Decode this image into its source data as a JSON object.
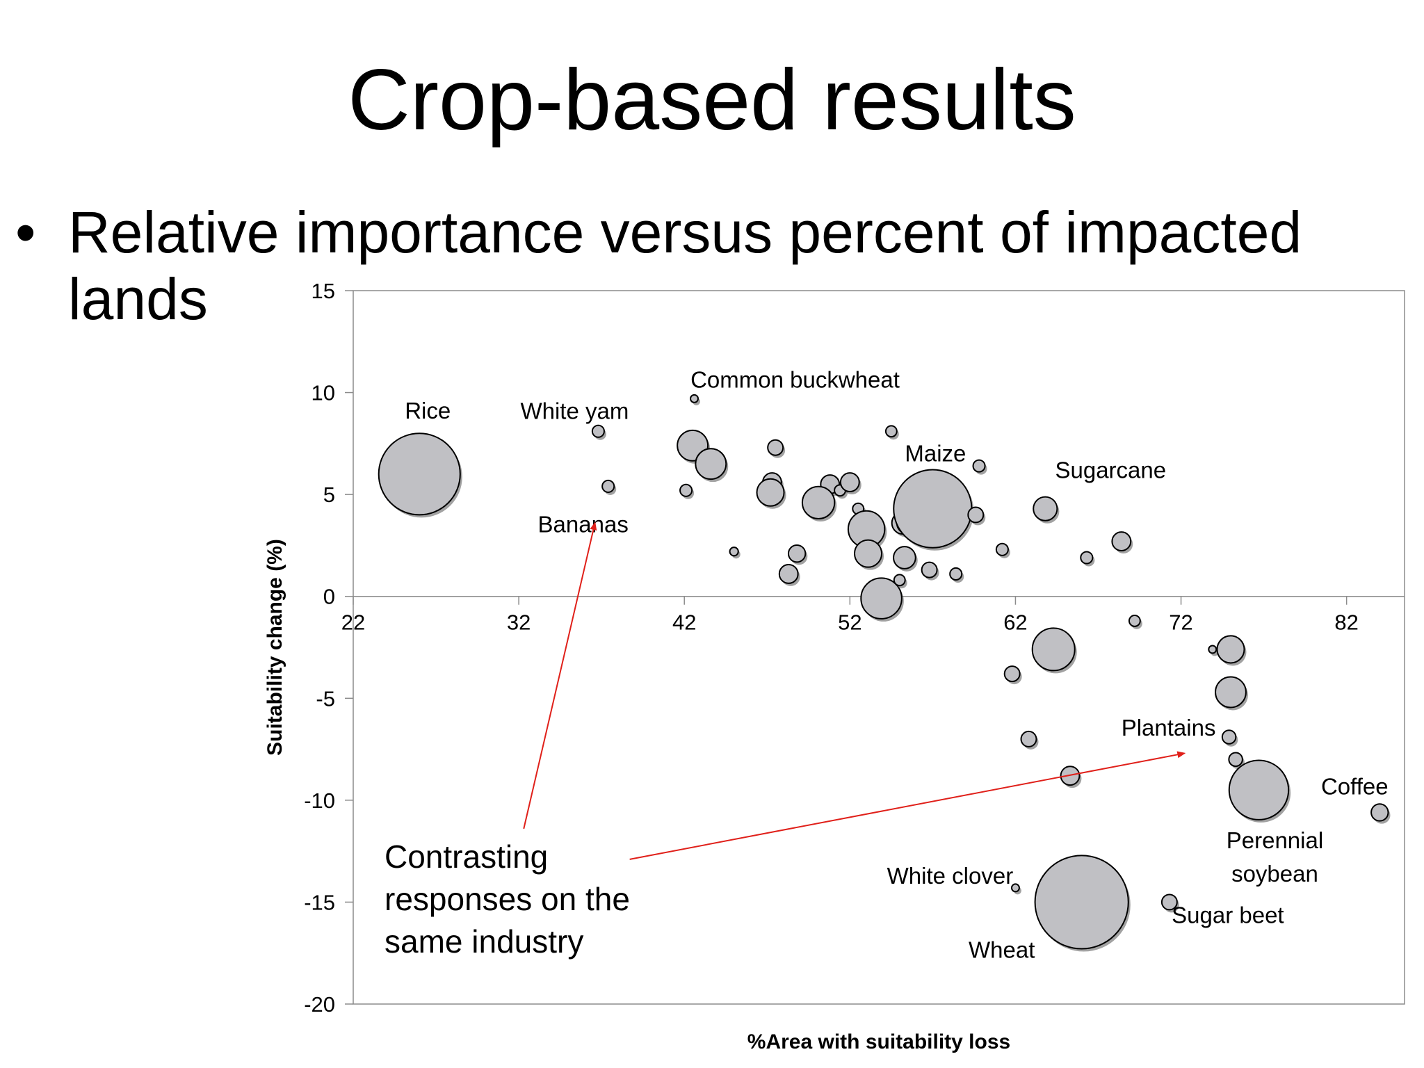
{
  "slide": {
    "title": "Crop-based results",
    "bullet": "Relative importance versus percent of impacted lands"
  },
  "chart_data": {
    "type": "scatter",
    "title": "",
    "xlabel": "%Area with suitability loss",
    "ylabel": "Suitability change (%)",
    "xlim": [
      22,
      85.5
    ],
    "ylim": [
      -20,
      15
    ],
    "xticks": [
      22,
      32,
      42,
      52,
      62,
      72,
      82
    ],
    "yticks": [
      15,
      10,
      5,
      0,
      -5,
      -10,
      -15,
      -20
    ],
    "grid": false,
    "legend": "none",
    "colors": {
      "bubble_fill": "#c0c0c4",
      "bubble_stroke": "#000000",
      "arrow": "#e0201a"
    },
    "points": [
      {
        "x": 26.0,
        "y": 6.0,
        "size": 9.6,
        "label": "Rice"
      },
      {
        "x": 36.8,
        "y": 8.1,
        "size": 1.4,
        "label": "White yam"
      },
      {
        "x": 37.4,
        "y": 5.4,
        "size": 1.4,
        "label": "Bananas"
      },
      {
        "x": 42.6,
        "y": 9.7,
        "size": 0.9,
        "label": "Common buckwheat"
      },
      {
        "x": 42.5,
        "y": 7.4,
        "size": 3.6
      },
      {
        "x": 43.6,
        "y": 6.5,
        "size": 3.6
      },
      {
        "x": 42.1,
        "y": 5.2,
        "size": 1.4
      },
      {
        "x": 45.0,
        "y": 2.2,
        "size": 1.0
      },
      {
        "x": 47.5,
        "y": 7.3,
        "size": 1.8
      },
      {
        "x": 47.3,
        "y": 5.6,
        "size": 2.2
      },
      {
        "x": 47.2,
        "y": 5.1,
        "size": 3.2
      },
      {
        "x": 48.8,
        "y": 2.1,
        "size": 2.0
      },
      {
        "x": 48.3,
        "y": 1.1,
        "size": 2.2
      },
      {
        "x": 50.8,
        "y": 5.5,
        "size": 2.2
      },
      {
        "x": 51.4,
        "y": 5.2,
        "size": 1.3
      },
      {
        "x": 52.0,
        "y": 5.6,
        "size": 2.2
      },
      {
        "x": 50.1,
        "y": 4.6,
        "size": 3.8
      },
      {
        "x": 52.5,
        "y": 4.3,
        "size": 1.3
      },
      {
        "x": 53.0,
        "y": 3.3,
        "size": 4.3
      },
      {
        "x": 53.1,
        "y": 2.1,
        "size": 3.2
      },
      {
        "x": 53.9,
        "y": -0.1,
        "size": 4.8
      },
      {
        "x": 55.0,
        "y": 0.8,
        "size": 1.3
      },
      {
        "x": 55.3,
        "y": 1.9,
        "size": 2.6
      },
      {
        "x": 55.2,
        "y": 3.6,
        "size": 2.6
      },
      {
        "x": 55.5,
        "y": 3.6,
        "size": 2.6
      },
      {
        "x": 56.8,
        "y": 1.3,
        "size": 1.8
      },
      {
        "x": 54.5,
        "y": 8.1,
        "size": 1.3
      },
      {
        "x": 57.0,
        "y": 4.3,
        "size": 9.2,
        "label": "Maize"
      },
      {
        "x": 58.4,
        "y": 1.1,
        "size": 1.4
      },
      {
        "x": 59.6,
        "y": 4.0,
        "size": 1.8
      },
      {
        "x": 59.8,
        "y": 6.4,
        "size": 1.4
      },
      {
        "x": 61.2,
        "y": 2.3,
        "size": 1.4
      },
      {
        "x": 63.8,
        "y": 4.3,
        "size": 2.8,
        "label": "Sugarcane"
      },
      {
        "x": 66.3,
        "y": 1.9,
        "size": 1.4
      },
      {
        "x": 68.4,
        "y": 2.7,
        "size": 2.2
      },
      {
        "x": 69.2,
        "y": -1.2,
        "size": 1.3
      },
      {
        "x": 64.3,
        "y": -2.6,
        "size": 5.0
      },
      {
        "x": 61.8,
        "y": -3.8,
        "size": 1.8
      },
      {
        "x": 62.8,
        "y": -7.0,
        "size": 1.8
      },
      {
        "x": 65.3,
        "y": -8.8,
        "size": 2.2
      },
      {
        "x": 73.9,
        "y": -2.6,
        "size": 0.9
      },
      {
        "x": 75.0,
        "y": -2.6,
        "size": 3.2
      },
      {
        "x": 75.0,
        "y": -4.7,
        "size": 3.6
      },
      {
        "x": 74.9,
        "y": -6.9,
        "size": 1.6,
        "label": "Plantains"
      },
      {
        "x": 75.3,
        "y": -8.0,
        "size": 1.6
      },
      {
        "x": 76.7,
        "y": -9.5,
        "size": 7.0,
        "label": "Perennial soybean"
      },
      {
        "x": 84.0,
        "y": -10.6,
        "size": 2.0,
        "label": "Coffee"
      },
      {
        "x": 62.0,
        "y": -14.3,
        "size": 0.9,
        "label": "White clover"
      },
      {
        "x": 66.0,
        "y": -15.0,
        "size": 11.0,
        "label": "Wheat"
      },
      {
        "x": 71.3,
        "y": -15.0,
        "size": 1.8,
        "label": "Sugar beet"
      }
    ],
    "annotations": {
      "text_lines": [
        "Contrasting",
        "responses on the",
        "same industry"
      ],
      "arrows": [
        {
          "from": {
            "x": 32.3,
            "y": -11.4
          },
          "to": {
            "x": 36.6,
            "y": 3.6
          }
        },
        {
          "from": {
            "x": 38.7,
            "y": -12.9
          },
          "to": {
            "x": 72.2,
            "y": -7.7
          }
        }
      ]
    }
  }
}
